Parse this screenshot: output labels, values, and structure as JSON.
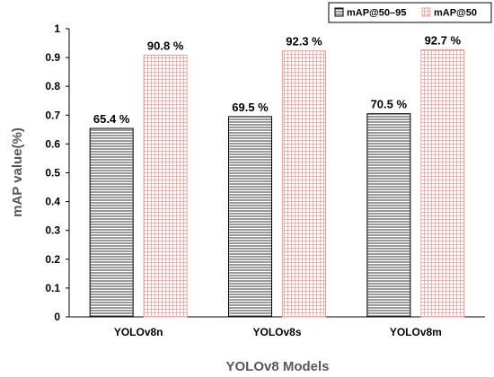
{
  "chart_data": {
    "type": "bar",
    "categories": [
      "YOLOv8n",
      "YOLOv8s",
      "YOLOv8m"
    ],
    "series": [
      {
        "name": "mAP@50–95",
        "values": [
          0.654,
          0.695,
          0.705
        ],
        "labels": [
          "65.4 %",
          "69.5 %",
          "70.5 %"
        ],
        "pattern": "horizontal-lines"
      },
      {
        "name": "mAP@50",
        "values": [
          0.908,
          0.923,
          0.927
        ],
        "labels": [
          "90.8 %",
          "92.3 %",
          "92.7 %"
        ],
        "pattern": "pink-grid"
      }
    ],
    "title": "",
    "xlabel": "YOLOv8 Models",
    "ylabel": "mAP value(%)",
    "ylim": [
      0,
      1
    ],
    "yticks": [
      "0",
      "0.1",
      "0.2",
      "0.3",
      "0.4",
      "0.5",
      "0.6",
      "0.7",
      "0.8",
      "0.9",
      "1"
    ],
    "grid": false,
    "legend_position": "top-right",
    "colors": {
      "series1_stroke": "#000000",
      "series2_stroke": "#e8a0a0",
      "axis_title": "#595959"
    }
  }
}
